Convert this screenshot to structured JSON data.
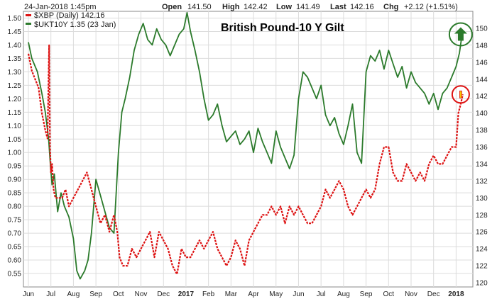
{
  "header": {
    "timestamp": "24-Jan-2018 1:45pm",
    "open_label": "Open",
    "open_value": "141.50",
    "high_label": "High",
    "high_value": "142.42",
    "low_label": "Low",
    "low_value": "141.49",
    "last_label": "Last",
    "last_value": "142.16",
    "chg_label": "Chg",
    "chg_value": "+2.12 (+1.51%)"
  },
  "legend": {
    "gbp_label": "$XBP (Daily) 142.16",
    "gilt_label": "$UKT10Y 1.35 (23 Jan)"
  },
  "colors": {
    "gbp": "#dd1111",
    "gilt": "#2b7a2b",
    "grid": "#dcdcdc",
    "frame": "#888888",
    "arrow_up": "#2b7a2b"
  },
  "chart_data": {
    "type": "line",
    "title": "British Pound-10 Y Gilt",
    "x_labels": [
      "Jun",
      "Jul",
      "Aug",
      "Sep",
      "Oct",
      "Nov",
      "Dec",
      "2017",
      "Feb",
      "Mar",
      "Apr",
      "May",
      "Jun",
      "Jul",
      "Aug",
      "Sep",
      "Oct",
      "Nov",
      "Dec",
      "2018"
    ],
    "left_axis": {
      "ylim": [
        0.5,
        1.525
      ],
      "ticks": [
        "1.50",
        "1.45",
        "1.40",
        "1.35",
        "1.30",
        "1.25",
        "1.20",
        "1.15",
        "1.10",
        "1.05",
        "1.00",
        "0.95",
        "0.90",
        "0.85",
        "0.80",
        "0.75",
        "0.70",
        "0.65",
        "0.60",
        "0.55"
      ]
    },
    "right_axis": {
      "ylim": [
        119.5,
        152
      ],
      "ticks": [
        "150",
        "148",
        "146",
        "144",
        "142",
        "140",
        "138",
        "136",
        "134",
        "132",
        "130",
        "128",
        "126",
        "124",
        "122",
        "120"
      ]
    },
    "series": [
      {
        "name": "$UKT10Y",
        "axis": "left",
        "x": [
          0,
          0.15,
          0.4,
          0.6,
          0.75,
          0.9,
          0.98,
          1.05,
          1.15,
          1.3,
          1.45,
          1.6,
          1.8,
          2.0,
          2.15,
          2.3,
          2.5,
          2.65,
          2.8,
          3.0,
          3.2,
          3.4,
          3.6,
          3.8,
          4.0,
          4.15,
          4.3,
          4.5,
          4.7,
          4.9,
          5.1,
          5.3,
          5.5,
          5.7,
          5.9,
          6.1,
          6.3,
          6.5,
          6.7,
          6.9,
          7.05,
          7.2,
          7.4,
          7.6,
          7.8,
          8.0,
          8.2,
          8.4,
          8.6,
          8.8,
          9.0,
          9.2,
          9.4,
          9.6,
          9.8,
          10.0,
          10.2,
          10.4,
          10.6,
          10.8,
          11.0,
          11.2,
          11.4,
          11.6,
          11.8,
          12.0,
          12.2,
          12.4,
          12.6,
          12.8,
          13.0,
          13.2,
          13.4,
          13.6,
          13.8,
          14.0,
          14.2,
          14.4,
          14.6,
          14.8,
          15.0,
          15.2,
          15.4,
          15.6,
          15.8,
          16.0,
          16.2,
          16.4,
          16.6,
          16.8,
          17.0,
          17.2,
          17.4,
          17.6,
          17.8,
          18.0,
          18.2,
          18.4,
          18.6,
          18.8,
          19.0,
          19.15,
          19.25,
          19.3
        ],
        "values": [
          1.41,
          1.35,
          1.3,
          1.22,
          1.15,
          1.05,
          0.95,
          0.88,
          0.92,
          0.78,
          0.85,
          0.8,
          0.76,
          0.68,
          0.56,
          0.53,
          0.56,
          0.6,
          0.7,
          0.9,
          0.84,
          0.78,
          0.72,
          0.7,
          1.0,
          1.15,
          1.2,
          1.28,
          1.38,
          1.44,
          1.48,
          1.42,
          1.4,
          1.46,
          1.42,
          1.4,
          1.36,
          1.4,
          1.44,
          1.46,
          1.52,
          1.45,
          1.38,
          1.3,
          1.2,
          1.12,
          1.14,
          1.18,
          1.1,
          1.04,
          1.06,
          1.08,
          1.03,
          1.05,
          1.08,
          1.0,
          1.09,
          1.04,
          1.0,
          0.96,
          1.08,
          1.02,
          0.98,
          0.94,
          0.99,
          1.2,
          1.3,
          1.28,
          1.24,
          1.2,
          1.25,
          1.14,
          1.1,
          1.13,
          1.07,
          1.03,
          1.1,
          1.18,
          1.0,
          0.96,
          1.3,
          1.36,
          1.34,
          1.38,
          1.31,
          1.38,
          1.33,
          1.28,
          1.32,
          1.24,
          1.3,
          1.26,
          1.24,
          1.22,
          1.18,
          1.22,
          1.16,
          1.22,
          1.24,
          1.28,
          1.32,
          1.37,
          1.43,
          1.45
        ]
      },
      {
        "name": "$XBP",
        "axis": "right",
        "x": [
          0,
          0.15,
          0.3,
          0.45,
          0.6,
          0.75,
          0.85,
          0.92,
          0.96,
          1.0,
          1.05,
          1.12,
          1.2,
          1.35,
          1.5,
          1.65,
          1.8,
          2.0,
          2.2,
          2.4,
          2.6,
          2.8,
          3.0,
          3.2,
          3.4,
          3.6,
          3.8,
          3.95,
          4.05,
          4.2,
          4.4,
          4.6,
          4.8,
          5.0,
          5.2,
          5.4,
          5.6,
          5.8,
          6.0,
          6.2,
          6.4,
          6.6,
          6.8,
          7.0,
          7.2,
          7.4,
          7.6,
          7.8,
          8.0,
          8.2,
          8.4,
          8.6,
          8.8,
          9.0,
          9.2,
          9.4,
          9.6,
          9.8,
          10.0,
          10.2,
          10.4,
          10.6,
          10.8,
          11.0,
          11.2,
          11.4,
          11.6,
          11.8,
          12.0,
          12.2,
          12.4,
          12.6,
          12.8,
          13.0,
          13.2,
          13.4,
          13.6,
          13.8,
          14.0,
          14.2,
          14.4,
          14.6,
          14.8,
          15.0,
          15.2,
          15.4,
          15.6,
          15.8,
          16.0,
          16.2,
          16.4,
          16.6,
          16.8,
          17.0,
          17.2,
          17.4,
          17.6,
          17.8,
          18.0,
          18.2,
          18.4,
          18.6,
          18.8,
          19.0,
          19.1,
          19.2,
          19.3
        ],
        "values": [
          147,
          145,
          144,
          143,
          140,
          138,
          137,
          148,
          136,
          133,
          134,
          131,
          130,
          130,
          130,
          131,
          129,
          130,
          131,
          132,
          133,
          131,
          129,
          127,
          128,
          126,
          128,
          126,
          123,
          122,
          122,
          124,
          123,
          124,
          125,
          126,
          123,
          126,
          125,
          124,
          122,
          121,
          124,
          123,
          123,
          124,
          125,
          124,
          125,
          126,
          124,
          123,
          122,
          123,
          125,
          124,
          122,
          125,
          126,
          127,
          128,
          128,
          129,
          128,
          129,
          127,
          129,
          128,
          129,
          128,
          127,
          127,
          128,
          129,
          131,
          130,
          131,
          132,
          131,
          129,
          128,
          129,
          130,
          131,
          130,
          131,
          134,
          136,
          136,
          133,
          132,
          132,
          134,
          133,
          132,
          133,
          132,
          134,
          135,
          134,
          134,
          135,
          136,
          136,
          140,
          141,
          142.2
        ]
      }
    ],
    "markers": [
      {
        "series": "$UKT10Y",
        "x": 19.3,
        "shape": "up-arrow-circle"
      },
      {
        "series": "$XBP",
        "x": 19.3,
        "shape": "circle"
      }
    ]
  }
}
